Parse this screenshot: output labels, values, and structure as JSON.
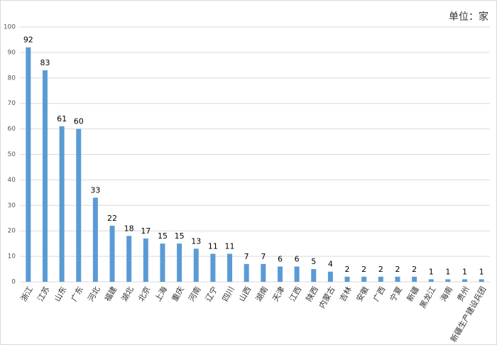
{
  "chart_data": {
    "type": "bar",
    "annotation": "单位：家",
    "categories": [
      "浙江",
      "江苏",
      "山东",
      "广东",
      "河北",
      "福建",
      "湖北",
      "北京",
      "上海",
      "重庆",
      "河南",
      "辽宁",
      "四川",
      "山西",
      "湖南",
      "天津",
      "江西",
      "陕西",
      "内蒙古",
      "吉林",
      "安徽",
      "广西",
      "宁夏",
      "新疆",
      "黑龙江",
      "海南",
      "贵州",
      "新疆生产建设兵团"
    ],
    "values": [
      92,
      83,
      61,
      60,
      33,
      22,
      18,
      17,
      15,
      15,
      13,
      11,
      11,
      7,
      7,
      6,
      6,
      5,
      4,
      2,
      2,
      2,
      2,
      2,
      1,
      1,
      1,
      1
    ],
    "color": "#5b9bd5",
    "ylim": [
      0,
      100
    ],
    "yticks": [
      0,
      10,
      20,
      30,
      40,
      50,
      60,
      70,
      80,
      90,
      100
    ],
    "grid": true
  }
}
